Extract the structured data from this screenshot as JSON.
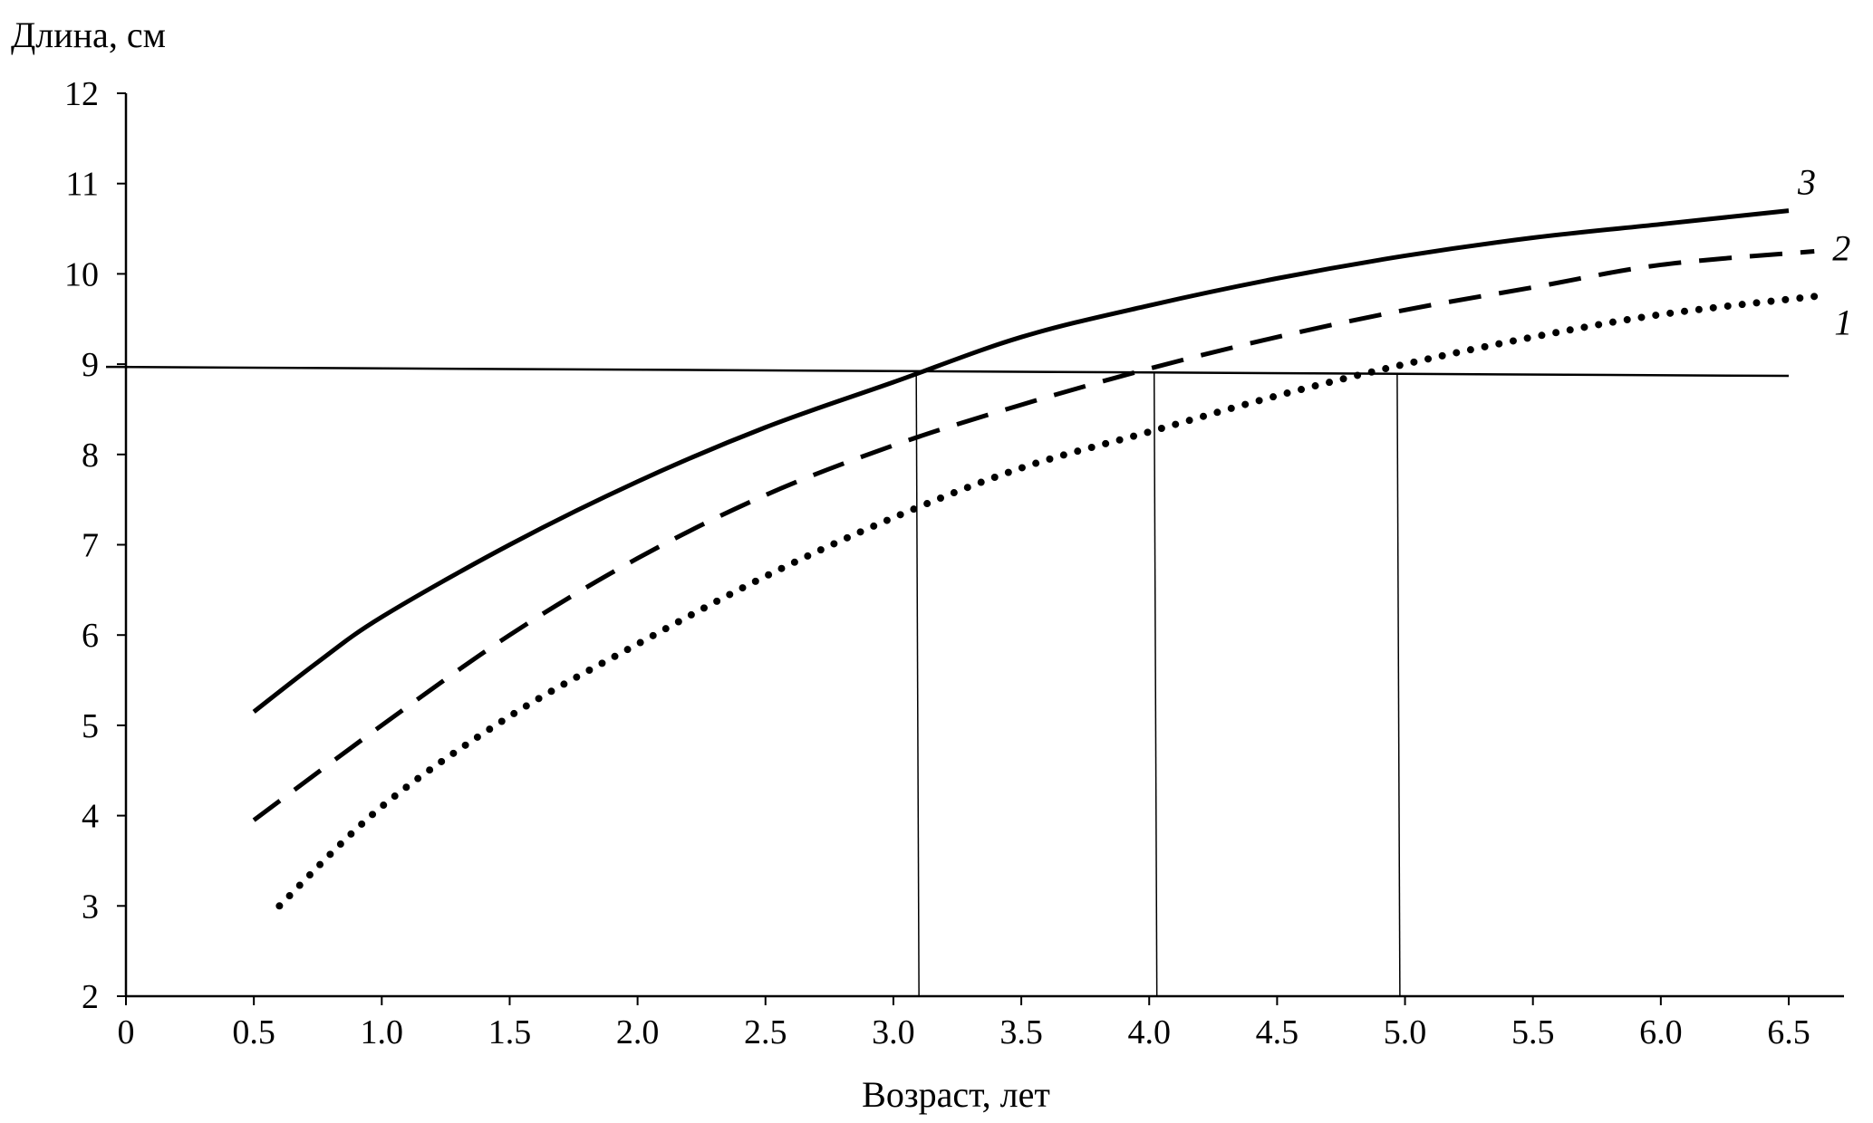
{
  "chart_data": {
    "type": "line",
    "ylabel": "Длина, см",
    "xlabel": "Возраст, лет",
    "xlim": [
      0,
      6.75
    ],
    "ylim": [
      2,
      12
    ],
    "x_ticks": [
      "0",
      "0.5",
      "1.0",
      "1.5",
      "2.0",
      "2.5",
      "3.0",
      "3.5",
      "4.0",
      "4.5",
      "5.0",
      "5.5",
      "6.0",
      "6.5"
    ],
    "y_ticks": [
      "2",
      "3",
      "4",
      "5",
      "6",
      "7",
      "8",
      "9",
      "10",
      "11",
      "12"
    ],
    "grid": false,
    "series": [
      {
        "name": "1",
        "style": "dotted",
        "x": [
          0.6,
          1.0,
          1.5,
          2.0,
          2.5,
          3.0,
          3.5,
          4.0,
          4.5,
          5.0,
          5.5,
          6.0,
          6.6
        ],
        "y": [
          3.0,
          4.1,
          5.1,
          5.9,
          6.65,
          7.3,
          7.85,
          8.25,
          8.65,
          9.0,
          9.3,
          9.55,
          9.75
        ]
      },
      {
        "name": "2",
        "style": "dashed",
        "x": [
          0.5,
          1.0,
          1.5,
          2.0,
          2.5,
          3.0,
          3.5,
          4.0,
          4.5,
          5.0,
          5.5,
          6.0,
          6.6
        ],
        "y": [
          3.95,
          5.0,
          6.0,
          6.85,
          7.55,
          8.1,
          8.55,
          8.95,
          9.3,
          9.6,
          9.85,
          10.1,
          10.25
        ]
      },
      {
        "name": "3",
        "style": "solid",
        "x": [
          0.5,
          0.75,
          1.0,
          1.5,
          2.0,
          2.5,
          3.0,
          3.5,
          4.0,
          4.5,
          5.0,
          5.5,
          6.0,
          6.5
        ],
        "y": [
          5.15,
          5.7,
          6.2,
          7.0,
          7.7,
          8.3,
          8.8,
          9.3,
          9.65,
          9.95,
          10.2,
          10.4,
          10.55,
          10.7
        ]
      }
    ],
    "reference_lines": {
      "horizontal": {
        "x": [
          0,
          6.5
        ],
        "y": [
          8.97,
          8.87
        ]
      },
      "vertical_x": [
        3.1,
        4.03,
        4.98
      ]
    }
  }
}
